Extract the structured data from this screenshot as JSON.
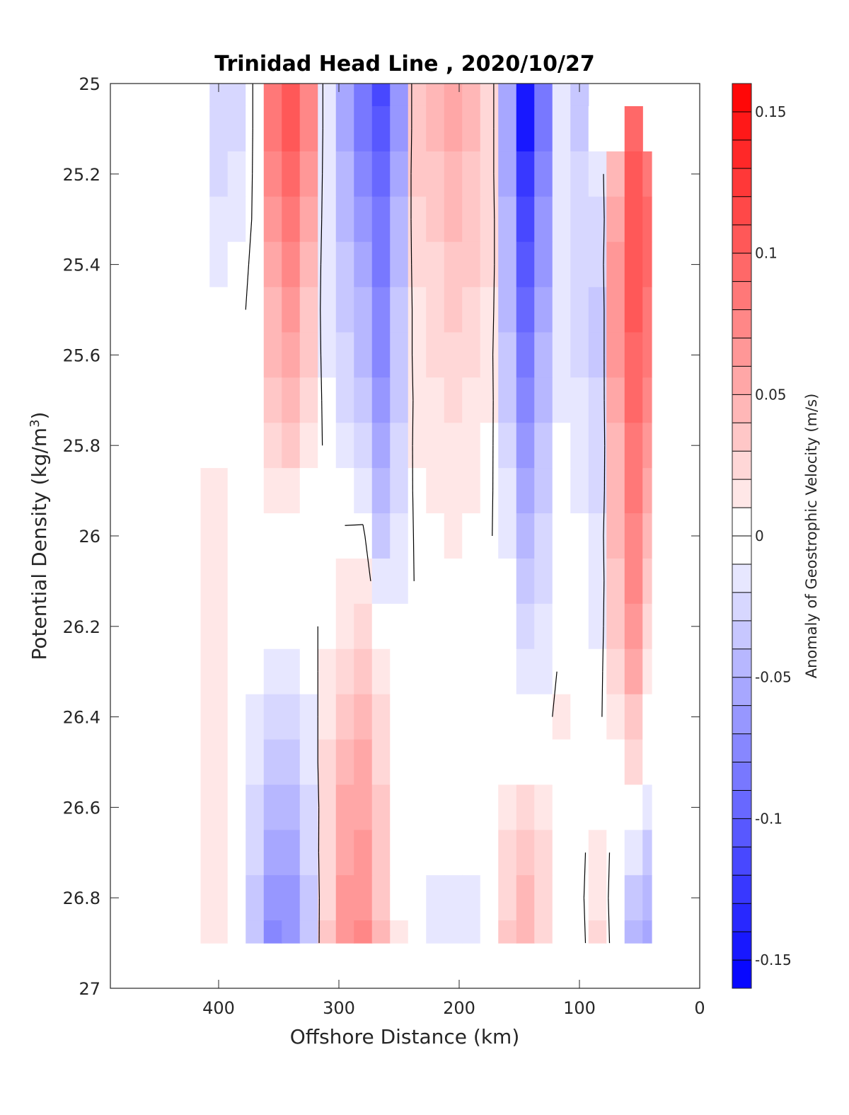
{
  "chart_data": {
    "type": "heatmap",
    "title": "Trinidad Head Line , 2020/10/27",
    "xlabel": "Offshore Distance (km)",
    "ylabel_main": "Potential Density (kg/m",
    "ylabel_sup": "3",
    "ylabel_close": ")",
    "colorbar_label": "Anomaly of Geostrophic Velocity (m/s)",
    "xlim": [
      490,
      0
    ],
    "ylim": [
      27,
      25
    ],
    "y_reversed": true,
    "x_reversed": true,
    "xticks": [
      400,
      300,
      200,
      100,
      0
    ],
    "xtick_labels": [
      "400",
      "300",
      "200",
      "100",
      "0"
    ],
    "yticks": [
      25,
      25.2,
      25.4,
      25.6,
      25.8,
      26,
      26.2,
      26.4,
      26.6,
      26.8,
      27
    ],
    "ytick_labels": [
      "25",
      "25.2",
      "25.4",
      "25.6",
      "25.8",
      "26",
      "26.2",
      "26.4",
      "26.6",
      "26.8",
      "27"
    ],
    "clim": [
      -0.16,
      0.16
    ],
    "colorbar_ticks": [
      0.15,
      0.1,
      0.05,
      0,
      -0.05,
      -0.1,
      -0.15
    ],
    "colorbar_tick_labels": [
      "0.15",
      "0.1",
      "0.05",
      "0",
      "-0.05",
      "-0.1",
      "-0.15"
    ],
    "colorbar_levels": 32,
    "colormap": {
      "negative": "#0000ff",
      "zero": "#ffffff",
      "positive": "#ff0000"
    },
    "zero_contour_color": "#000000",
    "x": [
      415,
      400,
      385,
      370,
      355,
      340,
      325,
      310,
      295,
      280,
      265,
      250,
      235,
      220,
      205,
      190,
      175,
      160,
      145,
      130,
      115,
      100,
      85,
      70,
      55,
      40
    ],
    "y": [
      25.0,
      25.1,
      25.2,
      25.3,
      25.4,
      25.5,
      25.6,
      25.7,
      25.8,
      25.9,
      26.0,
      26.1,
      26.2,
      26.3,
      26.4,
      26.5,
      26.6,
      26.7,
      26.8,
      26.9
    ],
    "values": [
      [
        null,
        -0.03,
        -0.025,
        0.003,
        0.08,
        0.1,
        0.07,
        -0.02,
        -0.06,
        -0.09,
        -0.115,
        -0.07,
        0.03,
        0.04,
        0.05,
        0.04,
        0.02,
        -0.06,
        -0.14,
        -0.09,
        -0.02,
        -0.04,
        null,
        null,
        null,
        null
      ],
      [
        null,
        -0.03,
        -0.025,
        0.003,
        0.08,
        0.1,
        0.07,
        -0.02,
        -0.06,
        -0.09,
        -0.11,
        -0.07,
        0.03,
        0.04,
        0.05,
        0.04,
        0.02,
        -0.06,
        -0.14,
        -0.09,
        -0.02,
        -0.04,
        -0.01,
        null,
        0.09,
        null
      ],
      [
        null,
        -0.025,
        -0.02,
        0.003,
        0.07,
        0.09,
        0.06,
        -0.02,
        -0.05,
        -0.08,
        -0.1,
        -0.06,
        0.03,
        0.035,
        0.045,
        0.035,
        0.02,
        -0.06,
        -0.13,
        -0.08,
        -0.02,
        -0.03,
        -0.02,
        0.04,
        0.1,
        0.08
      ],
      [
        null,
        -0.02,
        -0.015,
        0.003,
        0.06,
        0.08,
        0.05,
        -0.02,
        -0.05,
        -0.07,
        -0.09,
        -0.05,
        0.025,
        0.03,
        0.04,
        0.03,
        0.02,
        -0.05,
        -0.12,
        -0.07,
        -0.02,
        -0.03,
        -0.03,
        0.05,
        0.1,
        0.09
      ],
      [
        null,
        -0.015,
        -0.01,
        0.005,
        0.05,
        0.07,
        0.04,
        -0.02,
        -0.04,
        -0.06,
        -0.085,
        -0.045,
        0.02,
        0.025,
        0.035,
        0.03,
        0.02,
        -0.05,
        -0.11,
        -0.065,
        -0.02,
        -0.03,
        -0.03,
        0.06,
        0.1,
        0.09
      ],
      [
        null,
        -0.01,
        -0.005,
        0.005,
        0.045,
        0.06,
        0.035,
        -0.02,
        -0.035,
        -0.05,
        -0.08,
        -0.04,
        0.015,
        0.02,
        0.03,
        0.025,
        0.015,
        -0.045,
        -0.1,
        -0.06,
        -0.02,
        -0.03,
        -0.035,
        0.06,
        0.1,
        0.08
      ],
      [
        null,
        0.0,
        0.0,
        0.005,
        0.04,
        0.05,
        0.03,
        -0.015,
        -0.03,
        -0.045,
        -0.075,
        -0.04,
        0.015,
        0.02,
        0.025,
        0.02,
        0.01,
        -0.04,
        -0.09,
        -0.05,
        -0.02,
        -0.025,
        -0.035,
        0.06,
        0.095,
        0.08
      ],
      [
        null,
        0.0,
        0.0,
        0.004,
        0.03,
        0.04,
        0.025,
        -0.01,
        -0.025,
        -0.04,
        -0.07,
        -0.035,
        0.01,
        0.015,
        0.02,
        0.015,
        0.01,
        -0.035,
        -0.08,
        -0.045,
        -0.015,
        -0.02,
        -0.03,
        0.05,
        0.09,
        0.07
      ],
      [
        null,
        0.0,
        0.0,
        0.003,
        0.02,
        0.03,
        0.015,
        -0.005,
        -0.02,
        -0.025,
        -0.06,
        -0.03,
        0.01,
        0.012,
        0.015,
        0.012,
        0.008,
        -0.03,
        -0.07,
        -0.04,
        -0.01,
        -0.015,
        -0.03,
        0.045,
        0.085,
        0.06
      ],
      [
        0.01,
        0.01,
        0.0,
        0.0,
        0.01,
        0.015,
        0.005,
        0.0,
        -0.01,
        -0.015,
        -0.05,
        -0.025,
        0.008,
        0.01,
        0.012,
        0.01,
        0.005,
        -0.02,
        -0.06,
        -0.035,
        -0.01,
        -0.015,
        -0.025,
        0.04,
        0.08,
        0.05
      ],
      [
        0.015,
        0.01,
        0.0,
        0.0,
        0.005,
        0.005,
        0.0,
        0.0,
        0.003,
        0.005,
        -0.04,
        -0.02,
        0.005,
        0.008,
        0.01,
        0.008,
        0.003,
        -0.015,
        -0.05,
        -0.03,
        -0.005,
        -0.01,
        -0.02,
        0.04,
        0.075,
        0.04
      ],
      [
        0.015,
        0.01,
        0.0,
        0.0,
        0.0,
        0.0,
        0.0,
        0.003,
        0.01,
        0.015,
        -0.02,
        -0.015,
        0.003,
        0.005,
        0.008,
        0.005,
        0.0,
        -0.01,
        -0.04,
        -0.025,
        -0.005,
        -0.01,
        -0.02,
        0.035,
        0.07,
        0.03
      ],
      [
        0.015,
        0.01,
        0.0,
        -0.005,
        -0.01,
        -0.01,
        -0.005,
        0.005,
        0.015,
        0.02,
        0.0,
        -0.01,
        0.0,
        0.003,
        0.005,
        0.003,
        0.0,
        -0.005,
        -0.03,
        -0.02,
        0.0,
        -0.01,
        -0.015,
        0.03,
        0.065,
        0.02
      ],
      [
        0.015,
        0.01,
        0.0,
        -0.01,
        -0.02,
        -0.015,
        -0.01,
        0.01,
        0.025,
        0.03,
        0.01,
        -0.005,
        0.0,
        0.0,
        0.0,
        0.0,
        0.0,
        0.0,
        -0.02,
        -0.015,
        0.005,
        -0.005,
        -0.01,
        0.025,
        0.05,
        0.01
      ],
      [
        0.015,
        0.01,
        0.0,
        -0.015,
        -0.03,
        -0.025,
        -0.015,
        0.015,
        0.035,
        0.04,
        0.02,
        0.0,
        0.0,
        0.0,
        0.0,
        0.0,
        0.0,
        0.0,
        -0.01,
        -0.01,
        0.01,
        0.0,
        -0.005,
        0.015,
        0.035,
        0.0
      ],
      [
        0.015,
        0.01,
        0.0,
        -0.02,
        -0.04,
        -0.035,
        -0.02,
        0.02,
        0.045,
        0.05,
        0.025,
        0.005,
        0.0,
        0.0,
        0.0,
        0.0,
        0.0,
        0.0,
        0.0,
        0.0,
        0.005,
        0.0,
        0.0,
        0.005,
        0.02,
        -0.01
      ],
      [
        0.015,
        0.01,
        0.0,
        -0.025,
        -0.05,
        -0.045,
        -0.025,
        0.02,
        0.05,
        0.055,
        0.03,
        0.008,
        0.0,
        -0.005,
        -0.005,
        -0.005,
        0.0,
        0.01,
        0.02,
        0.01,
        0.0,
        0.0,
        0.005,
        0.0,
        0.0,
        -0.02
      ],
      [
        0.015,
        0.01,
        0.0,
        -0.03,
        -0.06,
        -0.055,
        -0.03,
        0.025,
        0.055,
        0.06,
        0.03,
        0.008,
        0.0,
        -0.01,
        -0.01,
        -0.01,
        0.0,
        0.02,
        0.03,
        0.02,
        0.0,
        -0.005,
        0.01,
        -0.005,
        -0.02,
        -0.04
      ],
      [
        0.015,
        0.01,
        0.0,
        -0.035,
        -0.07,
        -0.065,
        -0.035,
        0.025,
        0.06,
        0.065,
        0.035,
        0.008,
        0.0,
        -0.015,
        -0.015,
        -0.015,
        0.0,
        0.025,
        0.04,
        0.02,
        0.0,
        -0.005,
        0.015,
        -0.01,
        -0.035,
        -0.05
      ],
      [
        0.015,
        0.01,
        0.0,
        -0.04,
        -0.08,
        -0.07,
        -0.04,
        0.03,
        0.065,
        0.07,
        0.04,
        0.01,
        0.0,
        -0.02,
        -0.02,
        -0.02,
        0.0,
        0.03,
        0.045,
        0.025,
        0.0,
        -0.01,
        0.02,
        -0.01,
        -0.045,
        -0.06
      ]
    ]
  }
}
